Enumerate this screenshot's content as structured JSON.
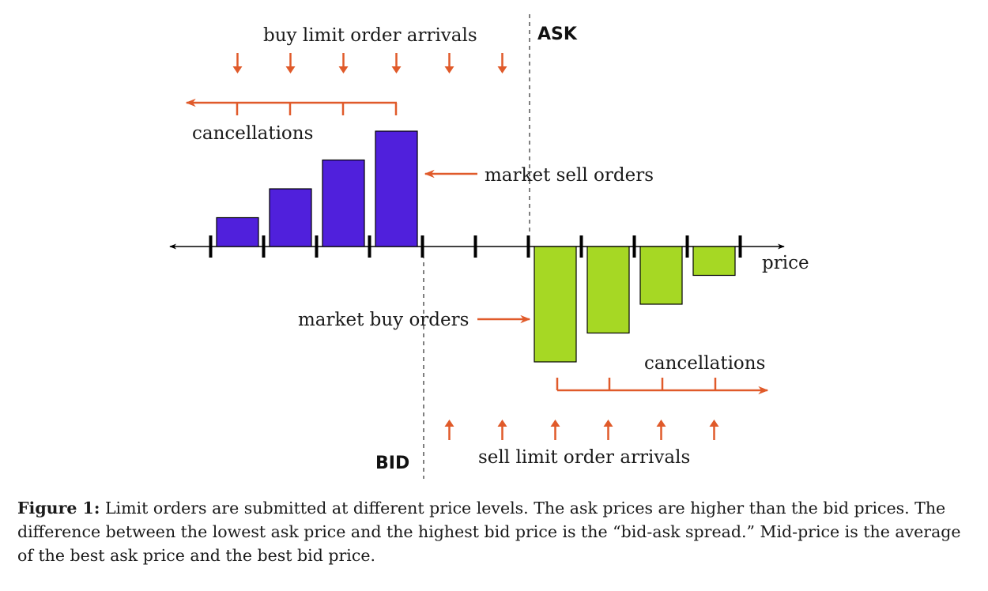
{
  "labels": {
    "ask": "ASK",
    "bid": "BID",
    "buy_limit_arrivals": "buy limit order arrivals",
    "sell_limit_arrivals": "sell limit order arrivals",
    "cancellations_top": "cancellations",
    "cancellations_bottom": "cancellations",
    "market_sell": "market sell orders",
    "market_buy": "market buy orders",
    "price": "price"
  },
  "caption": {
    "label": "Figure 1:",
    "text": "Limit orders are submitted at different price levels. The ask prices are higher than the bid prices. The difference between the lowest ask price and the highest bid price is the “bid-ask spread.” Mid-price is the average of the best ask price and the best bid price."
  },
  "colors": {
    "bid_bars": "#5020dc",
    "ask_bars": "#a6d824",
    "arrows": "#e05a2a",
    "axis": "#000000"
  },
  "chart_data": {
    "type": "bar",
    "bid_depths": [
      1,
      2,
      3,
      4
    ],
    "ask_depths": [
      4,
      3,
      2,
      1
    ],
    "empty_levels_between_bid_and_ask": 2
  }
}
